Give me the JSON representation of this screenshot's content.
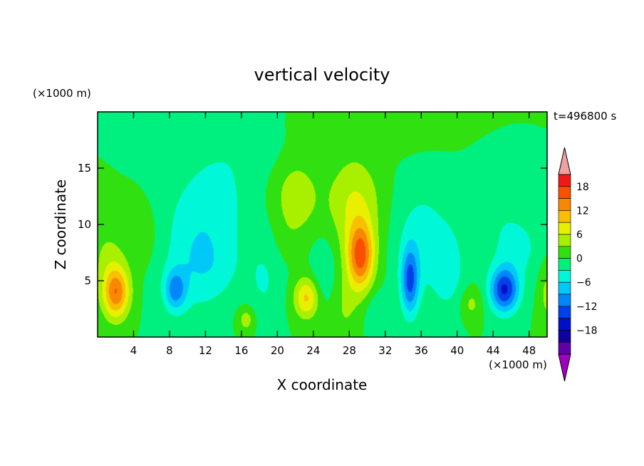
{
  "chart_data": {
    "type": "heatmap",
    "title": "vertical velocity",
    "xlabel": "X coordinate",
    "ylabel": "Z coordinate",
    "x_unit": "(×1000 m)",
    "y_unit": "(×1000 m)",
    "time_label": "t=496800 s",
    "xlim": [
      0,
      50
    ],
    "ylim": [
      0,
      20
    ],
    "x_ticks": [
      4,
      8,
      12,
      16,
      20,
      24,
      28,
      32,
      36,
      40,
      44,
      48
    ],
    "y_ticks": [
      5,
      10,
      15
    ],
    "colorbar": {
      "labels": [
        18,
        12,
        6,
        0,
        -6,
        -12,
        -18
      ],
      "levels": [
        21,
        18,
        15,
        12,
        9,
        6,
        3,
        0,
        -3,
        -6,
        -9,
        -12,
        -15,
        -18,
        -21
      ],
      "colors": [
        "#f0a0a0",
        "#f01818",
        "#f85000",
        "#f88800",
        "#f8c000",
        "#e8f000",
        "#a8f000",
        "#30e010",
        "#00f080",
        "#00f8d8",
        "#00c8f8",
        "#0088f8",
        "#0040e8",
        "#0010c8",
        "#1000a0",
        "#6000a8",
        "#a000c0"
      ]
    },
    "cells": [
      {
        "x": 2,
        "z": 4,
        "w": 14.5,
        "sx": 1.5,
        "sz": 2.3
      },
      {
        "x": 1,
        "z": 7.5,
        "w": 3,
        "sx": 2,
        "sz": 3
      },
      {
        "x": 5,
        "z": 9,
        "w": 2,
        "sx": 2.2,
        "sz": 3
      },
      {
        "x": 8.6,
        "z": 4.2,
        "w": -9,
        "sx": 1.2,
        "sz": 1.8
      },
      {
        "x": 10.5,
        "z": 8,
        "w": -4,
        "sx": 4,
        "sz": 6
      },
      {
        "x": 13.5,
        "z": 12,
        "w": -3,
        "sx": 4,
        "sz": 5
      },
      {
        "x": 12.5,
        "z": 6,
        "w": -2.5,
        "sx": 3.5,
        "sz": 3
      },
      {
        "x": 16.5,
        "z": 1.6,
        "w": 5,
        "sx": 1,
        "sz": 1.2
      },
      {
        "x": 18.5,
        "z": 5,
        "w": -3,
        "sx": 2,
        "sz": 4
      },
      {
        "x": 17,
        "z": 17,
        "w": -1.5,
        "sx": 5,
        "sz": 3
      },
      {
        "x": 21,
        "z": 8.5,
        "w": 1,
        "sx": 1.5,
        "sz": 2
      },
      {
        "x": 23.2,
        "z": 3.5,
        "w": 9.5,
        "sx": 1.4,
        "sz": 1.8
      },
      {
        "x": 22,
        "z": 12.5,
        "w": 5,
        "sx": 2.5,
        "sz": 3.5
      },
      {
        "x": 25,
        "z": 6,
        "w": -3,
        "sx": 1.3,
        "sz": 3
      },
      {
        "x": 29.2,
        "z": 7.2,
        "w": 16,
        "sx": 1.5,
        "sz": 3
      },
      {
        "x": 28.5,
        "z": 12,
        "w": 6,
        "sx": 3,
        "sz": 4
      },
      {
        "x": 27.5,
        "z": 2.5,
        "w": 3,
        "sx": 1.5,
        "sz": 3
      },
      {
        "x": 31,
        "z": 2,
        "w": -3,
        "sx": 1.2,
        "sz": 2
      },
      {
        "x": 34.7,
        "z": 5,
        "w": -12,
        "sx": 1,
        "sz": 3
      },
      {
        "x": 36,
        "z": 9,
        "w": -4,
        "sx": 3,
        "sz": 5
      },
      {
        "x": 39,
        "z": 6,
        "w": -4,
        "sx": 2,
        "sz": 4
      },
      {
        "x": 41.5,
        "z": 3,
        "w": 4,
        "sx": 1.2,
        "sz": 1.5
      },
      {
        "x": 45.2,
        "z": 4.2,
        "w": -15,
        "sx": 1.6,
        "sz": 2
      },
      {
        "x": 46.5,
        "z": 8,
        "w": -4,
        "sx": 3,
        "sz": 3
      },
      {
        "x": 44,
        "z": 12.5,
        "w": -2,
        "sx": 3,
        "sz": 3
      },
      {
        "x": 50,
        "z": 4,
        "w": 4,
        "sx": 1,
        "sz": 3
      },
      {
        "x": 30,
        "z": 18.5,
        "w": 2.5,
        "sx": 7,
        "sz": 2
      }
    ]
  }
}
